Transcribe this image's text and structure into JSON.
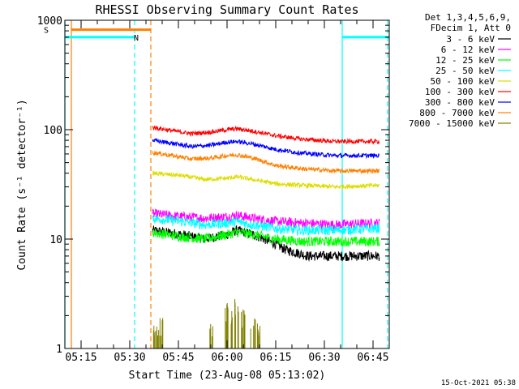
{
  "chart_data": {
    "type": "line",
    "title": "RHESSI Observing Summary Count Rates",
    "xlabel": "Start Time (23-Aug-08 05:13:02)",
    "ylabel": "Count Rate (s⁻¹ detector⁻¹)",
    "y_scale": "log",
    "ylim": [
      1,
      1000
    ],
    "xlim_minutes_after_0513": [
      -3,
      97
    ],
    "x_ticks": [
      {
        "label": "05:15",
        "min": 2
      },
      {
        "label": "05:30",
        "min": 17
      },
      {
        "label": "05:45",
        "min": 32
      },
      {
        "label": "06:00",
        "min": 47
      },
      {
        "label": "06:15",
        "min": 62
      },
      {
        "label": "06:30",
        "min": 77
      },
      {
        "label": "06:45",
        "min": 92
      }
    ],
    "y_ticks": [
      {
        "label": "1",
        "value": 1
      },
      {
        "label": "10",
        "value": 10
      },
      {
        "label": "100",
        "value": 100
      },
      {
        "label": "1000",
        "value": 1000
      }
    ],
    "legend_header": [
      "Det 1,3,4,5,6,9,",
      "FDecim 1, Att 0"
    ],
    "legend_position": "right",
    "series": [
      {
        "name": "3 - 6 keV",
        "color": "#000000",
        "start": 24,
        "end": 94,
        "points": [
          [
            24,
            12
          ],
          [
            33,
            11
          ],
          [
            40,
            10
          ],
          [
            47,
            11
          ],
          [
            50,
            12
          ],
          [
            55,
            11
          ],
          [
            62,
            9
          ],
          [
            65,
            8
          ],
          [
            72,
            7
          ],
          [
            80,
            7
          ],
          [
            90,
            7
          ],
          [
            94,
            7
          ]
        ]
      },
      {
        "name": "6 - 12 keV",
        "color": "#ff00ff",
        "start": 24,
        "end": 94,
        "points": [
          [
            24,
            17
          ],
          [
            33,
            16
          ],
          [
            40,
            15.5
          ],
          [
            47,
            16
          ],
          [
            50,
            16.5
          ],
          [
            55,
            15.5
          ],
          [
            62,
            14.5
          ],
          [
            70,
            14
          ],
          [
            80,
            13.5
          ],
          [
            94,
            14
          ]
        ]
      },
      {
        "name": "12 - 25 keV",
        "color": "#00ff00",
        "start": 24,
        "end": 94,
        "points": [
          [
            24,
            11.5
          ],
          [
            33,
            10.5
          ],
          [
            40,
            10
          ],
          [
            47,
            11
          ],
          [
            50,
            11.5
          ],
          [
            55,
            11
          ],
          [
            62,
            10
          ],
          [
            70,
            9.5
          ],
          [
            80,
            9.5
          ],
          [
            94,
            9.5
          ]
        ]
      },
      {
        "name": "25 - 50 keV",
        "color": "#00ffff",
        "start": 24,
        "end": 94,
        "points": [
          [
            24,
            15.5
          ],
          [
            33,
            14.5
          ],
          [
            40,
            13.5
          ],
          [
            47,
            14
          ],
          [
            50,
            14.5
          ],
          [
            55,
            13.5
          ],
          [
            62,
            12.5
          ],
          [
            70,
            12
          ],
          [
            80,
            12
          ],
          [
            94,
            12.5
          ]
        ]
      },
      {
        "name": "50 - 100 keV",
        "color": "#dddd00",
        "start": 24,
        "end": 94,
        "points": [
          [
            24,
            40
          ],
          [
            33,
            38
          ],
          [
            40,
            35
          ],
          [
            47,
            36
          ],
          [
            50,
            37
          ],
          [
            55,
            35
          ],
          [
            62,
            32
          ],
          [
            70,
            31
          ],
          [
            80,
            30
          ],
          [
            94,
            31
          ]
        ]
      },
      {
        "name": "100 - 300 keV",
        "color": "#ff0000",
        "start": 24,
        "end": 94,
        "points": [
          [
            24,
            105
          ],
          [
            30,
            98
          ],
          [
            36,
            92
          ],
          [
            42,
            95
          ],
          [
            47,
            100
          ],
          [
            50,
            102
          ],
          [
            55,
            97
          ],
          [
            62,
            88
          ],
          [
            70,
            82
          ],
          [
            80,
            78
          ],
          [
            94,
            78
          ]
        ]
      },
      {
        "name": "300 - 800 keV",
        "color": "#0000ff",
        "start": 24,
        "end": 94,
        "points": [
          [
            24,
            80
          ],
          [
            30,
            75
          ],
          [
            36,
            70
          ],
          [
            42,
            72
          ],
          [
            47,
            77
          ],
          [
            50,
            78
          ],
          [
            55,
            74
          ],
          [
            62,
            66
          ],
          [
            70,
            61
          ],
          [
            80,
            58
          ],
          [
            94,
            58
          ]
        ]
      },
      {
        "name": "800 - 7000 keV",
        "color": "#ff8000",
        "start": 24,
        "end": 94,
        "points": [
          [
            24,
            62
          ],
          [
            30,
            58
          ],
          [
            36,
            54
          ],
          [
            42,
            55
          ],
          [
            47,
            58
          ],
          [
            50,
            59
          ],
          [
            55,
            55
          ],
          [
            62,
            47
          ],
          [
            70,
            44
          ],
          [
            80,
            42
          ],
          [
            94,
            42
          ]
        ]
      },
      {
        "name": "7000 - 15000 keV",
        "color": "#808000",
        "start": 24,
        "end": 94,
        "points": [
          [
            24,
            1
          ],
          [
            94,
            1
          ]
        ],
        "spikes": [
          [
            25,
            1.7
          ],
          [
            26,
            1.5
          ],
          [
            27,
            2.0
          ],
          [
            42,
            1.7
          ],
          [
            47,
            2.6
          ],
          [
            49,
            2.2
          ],
          [
            50,
            2.9
          ],
          [
            52,
            2.3
          ],
          [
            55,
            1.9
          ],
          [
            57,
            1.7
          ]
        ]
      }
    ],
    "flags": [
      {
        "label": "S",
        "color": "#ff8000",
        "start": -1,
        "end": 23.5,
        "level": 820
      },
      {
        "label": "N",
        "color": "#00ffff",
        "start": -3,
        "end": 18.5,
        "level": 700
      },
      {
        "label": "",
        "color": "#00ffff",
        "start": 82.5,
        "end": 97,
        "level": 700
      }
    ],
    "event_lines": [
      {
        "color": "#00ffff",
        "min": -3,
        "style": "solid"
      },
      {
        "color": "#ff8000",
        "min": -1,
        "style": "solid"
      },
      {
        "color": "#00ffff",
        "min": 18.5,
        "style": "dashed"
      },
      {
        "color": "#ff8000",
        "min": 23.5,
        "style": "dashed"
      },
      {
        "color": "#00ffff",
        "min": 82.5,
        "style": "solid"
      },
      {
        "color": "#00ffff",
        "min": 96.5,
        "style": "dashed"
      }
    ]
  },
  "stamp": "15-Oct-2021 05:38"
}
